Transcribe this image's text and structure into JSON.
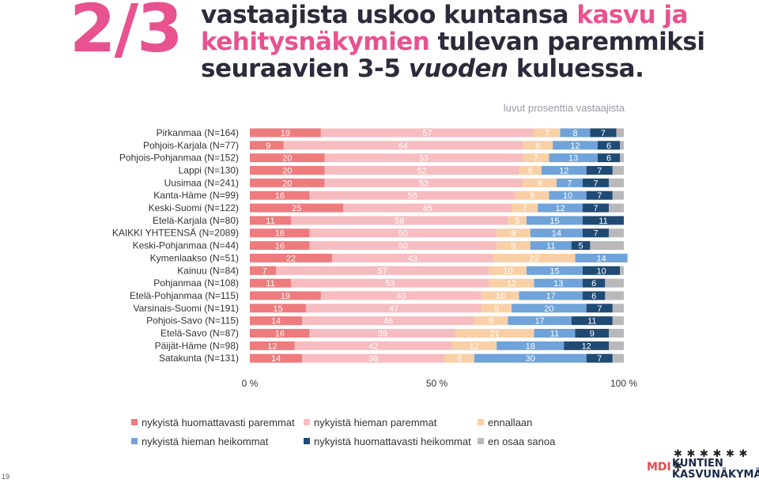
{
  "big_number": "2/3",
  "headline": {
    "p1": "vastaajista uskoo kuntansa ",
    "p2": "kasvu ja kehitysnäkymien",
    "p3": " tulevan paremmiksi seuraavien 3-5 ",
    "p4": "vuoden",
    "p5": " kuluessa."
  },
  "unit_note": "luvut prosenttia vastaajista",
  "page_number": "19",
  "logo": {
    "mdi": "MDI",
    "line1": "KUNTIEN",
    "line2": "KASVUNÄKYMÄT",
    "figures": "✱ ✱ ✱ ✱ ✱ ✱ ✱"
  },
  "colors": {
    "s1": "#ee7b7d",
    "s2": "#f7bcbf",
    "s3": "#f9d0a6",
    "s4": "#6fa3d9",
    "s5": "#1f4a73",
    "s6": "#b9b9bb"
  },
  "legend": [
    {
      "label": "nykyistä huomattavasti paremmat",
      "color": "#ee7b7d"
    },
    {
      "label": "nykyistä hieman paremmat",
      "color": "#f7bcbf"
    },
    {
      "label": "ennallaan",
      "color": "#f9d0a6"
    },
    {
      "label": "nykyistä hieman heikommat",
      "color": "#6fa3d9"
    },
    {
      "label": "nykyistä huomattavasti heikommat",
      "color": "#1f4a73"
    },
    {
      "label": "en osaa sanoa",
      "color": "#b9b9bb"
    }
  ],
  "chart_data": {
    "type": "bar",
    "orientation": "horizontal",
    "stacked": true,
    "xlim": [
      0,
      100
    ],
    "x_ticks": [
      "0 %",
      "50 %",
      "100 %"
    ],
    "categories": [
      "Pirkanmaa (N=164)",
      "Pohjois-Karjala (N=77)",
      "Pohjois-Pohjanmaa (N=152)",
      "Lappi (N=130)",
      "Uusimaa (N=241)",
      "Kanta-Häme (N=99)",
      "Keski-Suomi (N=122)",
      "Etelä-Karjala (N=80)",
      "KAIKKI YHTEENSÄ (N=2089)",
      "Keski-Pohjanmaa (N=44)",
      "Kymenlaakso (N=51)",
      "Kainuu (N=84)",
      "Pohjanmaa (N=108)",
      "Etelä-Pohjanmaa (N=115)",
      "Varsinais-Suomi (N=191)",
      "Pohjois-Savo (N=115)",
      "Etelä-Savo (N=87)",
      "Päijät-Häme (N=98)",
      "Satakunta (N=131)"
    ],
    "series": [
      {
        "name": "nykyistä huomattavasti paremmat",
        "values": [
          19,
          9,
          20,
          20,
          20,
          16,
          25,
          11,
          16,
          16,
          22,
          7,
          11,
          19,
          15,
          14,
          16,
          12,
          14
        ]
      },
      {
        "name": "nykyistä hieman paremmat",
        "values": [
          57,
          64,
          53,
          52,
          53,
          55,
          45,
          58,
          50,
          50,
          43,
          57,
          53,
          43,
          47,
          46,
          39,
          42,
          38
        ]
      },
      {
        "name": "ennallaan",
        "values": [
          7,
          8,
          7,
          6,
          9,
          9,
          7,
          5,
          9,
          9,
          22,
          10,
          12,
          10,
          8,
          9,
          21,
          12,
          8
        ]
      },
      {
        "name": "nykyistä hieman heikommat",
        "values": [
          8,
          12,
          13,
          12,
          7,
          10,
          12,
          15,
          14,
          11,
          14,
          15,
          13,
          17,
          20,
          17,
          11,
          18,
          30
        ]
      },
      {
        "name": "nykyistä huomattavasti heikommat",
        "values": [
          7,
          6,
          6,
          7,
          7,
          7,
          7,
          11,
          7,
          5,
          0,
          10,
          6,
          6,
          7,
          11,
          9,
          12,
          7
        ]
      },
      {
        "name": "en osaa sanoa",
        "values": [
          2,
          1,
          1,
          3,
          4,
          3,
          4,
          0,
          4,
          9,
          0,
          1,
          5,
          5,
          3,
          3,
          4,
          4,
          3
        ]
      }
    ]
  }
}
